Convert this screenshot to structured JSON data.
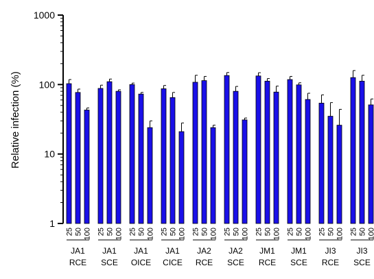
{
  "chart_data": {
    "type": "bar",
    "ylabel": "Relative infection (%)",
    "yscale": "log",
    "ylim": [
      1,
      1000
    ],
    "yticks": [
      "1",
      "10",
      "100",
      "1000"
    ],
    "bar_color": "#1a10e8",
    "dose_labels": [
      "25",
      "50",
      "100"
    ],
    "groups": [
      {
        "label_line1": "JA1",
        "label_line2": "RCE",
        "values": [
          103,
          77,
          43
        ],
        "errors": [
          15,
          9,
          3
        ]
      },
      {
        "label_line1": "JA1",
        "label_line2": "SCE",
        "values": [
          88,
          110,
          80
        ],
        "errors": [
          10,
          10,
          4
        ]
      },
      {
        "label_line1": "JA1",
        "label_line2": "OICE",
        "values": [
          100,
          73,
          24
        ],
        "errors": [
          5,
          4,
          6
        ]
      },
      {
        "label_line1": "JA1",
        "label_line2": "CICE",
        "values": [
          87,
          65,
          21
        ],
        "errors": [
          10,
          12,
          7
        ]
      },
      {
        "label_line1": "JA2",
        "label_line2": "RCE",
        "values": [
          108,
          114,
          24
        ],
        "errors": [
          28,
          17,
          2
        ]
      },
      {
        "label_line1": "JA2",
        "label_line2": "SCE",
        "values": [
          135,
          80,
          31
        ],
        "errors": [
          14,
          14,
          2
        ]
      },
      {
        "label_line1": "JM1",
        "label_line2": "RCE",
        "values": [
          133,
          112,
          78
        ],
        "errors": [
          15,
          10,
          17
        ]
      },
      {
        "label_line1": "JM1",
        "label_line2": "SCE",
        "values": [
          118,
          99,
          61
        ],
        "errors": [
          13,
          7,
          14
        ]
      },
      {
        "label_line1": "JI3",
        "label_line2": "RCE",
        "values": [
          54,
          35,
          26
        ],
        "errors": [
          17,
          20,
          18
        ]
      },
      {
        "label_line1": "JI3",
        "label_line2": "SCE",
        "values": [
          126,
          112,
          51
        ],
        "errors": [
          33,
          24,
          11
        ]
      }
    ]
  }
}
